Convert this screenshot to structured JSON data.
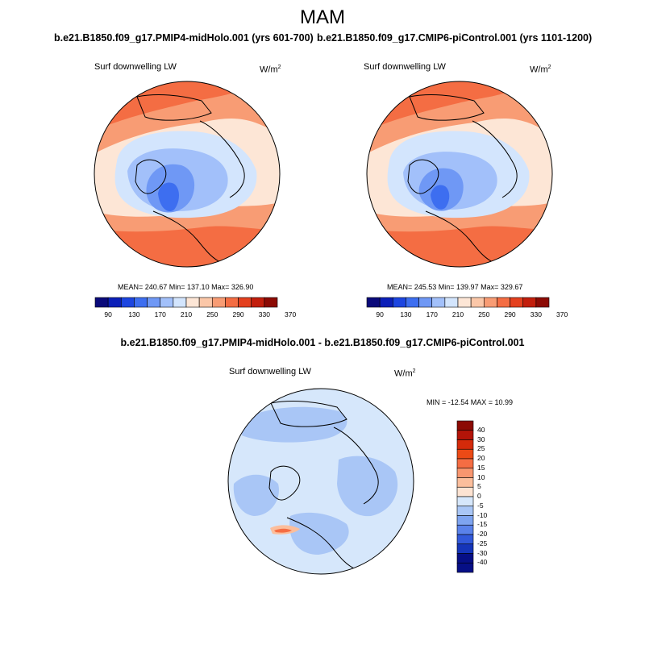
{
  "page": {
    "season": "MAM"
  },
  "chart_data": [
    {
      "type": "heatmap",
      "projection": "north polar stereographic",
      "title": "b.e21.B1850.f09_g17.PMIP4-midHolo.001 (yrs 601-700)",
      "left_label": "Surf downwelling LW",
      "units_label": "W/m",
      "units_exponent": "2",
      "stats": {
        "mean": 240.67,
        "min": 137.1,
        "max": 326.9
      },
      "stats_text": "MEAN= 240.67   Min= 137.10   Max= 326.90",
      "levels": [
        90,
        130,
        170,
        210,
        250,
        290,
        330,
        370
      ],
      "colorbar_ticks": [
        "90",
        "130",
        "170",
        "210",
        "250",
        "290",
        "330",
        "370"
      ]
    },
    {
      "type": "heatmap",
      "projection": "north polar stereographic",
      "title": "b.e21.B1850.f09_g17.CMIP6-piControl.001 (yrs 1101-1200)",
      "left_label": "Surf downwelling LW",
      "units_label": "W/m",
      "units_exponent": "2",
      "stats": {
        "mean": 245.53,
        "min": 139.97,
        "max": 329.67
      },
      "stats_text": "MEAN= 245.53   Min= 139.97   Max= 329.67",
      "levels": [
        90,
        130,
        170,
        210,
        250,
        290,
        330,
        370
      ],
      "colorbar_ticks": [
        "90",
        "130",
        "170",
        "210",
        "250",
        "290",
        "330",
        "370"
      ]
    },
    {
      "type": "heatmap",
      "projection": "north polar stereographic",
      "title": "b.e21.B1850.f09_g17.PMIP4-midHolo.001 - b.e21.B1850.f09_g17.CMIP6-piControl.001",
      "left_label": "Surf downwelling LW",
      "units_label": "W/m",
      "units_exponent": "2",
      "stats": {
        "min": -12.54,
        "max": 10.99
      },
      "stats_text": "MIN = -12.54 MAX =  10.99",
      "levels": [
        -40,
        -30,
        -25,
        -20,
        -15,
        -10,
        -5,
        0,
        5,
        10,
        15,
        20,
        25,
        30,
        40
      ],
      "colorbar_ticks": [
        "40",
        "30",
        "25",
        "20",
        "15",
        "10",
        "5",
        "0",
        "-5",
        "-10",
        "-15",
        "-20",
        "-25",
        "-30",
        "-40"
      ]
    }
  ],
  "palettes": {
    "abs": [
      "#0a0a7a",
      "#0b1fb8",
      "#1c45e0",
      "#3d6ef0",
      "#6f98f5",
      "#a2c0fa",
      "#d3e5fd",
      "#fde6d6",
      "#fbc7a8",
      "#f89c74",
      "#f46d43",
      "#e4401e",
      "#c21e0c",
      "#8c0a04"
    ],
    "diff": [
      "#8c0a04",
      "#b31408",
      "#d42a0a",
      "#ec4a16",
      "#f56d43",
      "#f8966f",
      "#fbbe9c",
      "#fde3d2",
      "#d6e7fb",
      "#a9c6f6",
      "#7ea4f0",
      "#5a82ea",
      "#3259da",
      "#1535b9",
      "#060f86"
    ]
  }
}
